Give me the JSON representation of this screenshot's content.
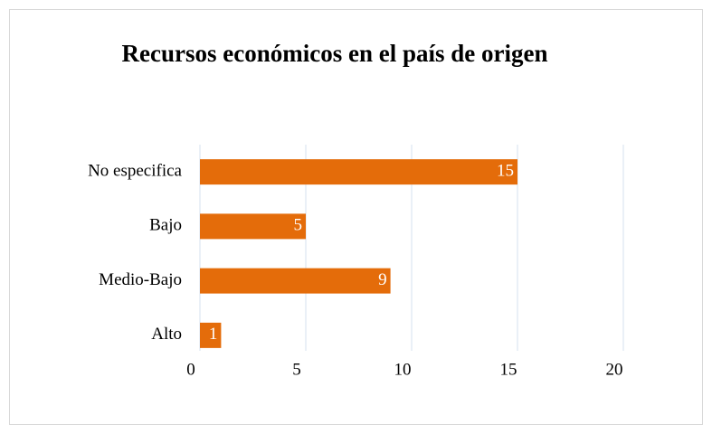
{
  "chart_data": {
    "type": "bar",
    "orientation": "horizontal",
    "title": "Recursos económicos en el país de origen",
    "categories": [
      "No especifica",
      "Bajo",
      "Medio-Bajo",
      "Alto"
    ],
    "values": [
      15,
      5,
      9,
      1
    ],
    "color": "#e46c0a",
    "xlim": [
      0,
      20
    ],
    "xticks": [
      0,
      5,
      10,
      15,
      20
    ],
    "grid": true
  }
}
